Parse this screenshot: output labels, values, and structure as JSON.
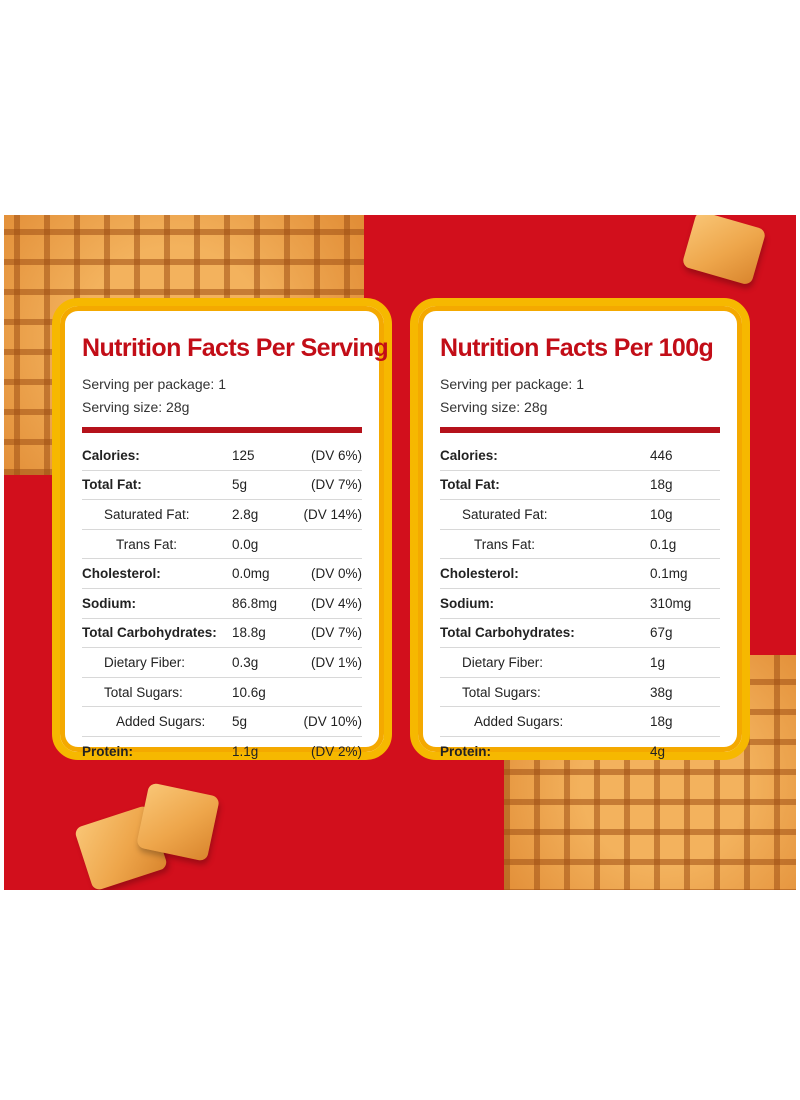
{
  "colors": {
    "background_red": "#d20f1c",
    "title_red": "#c20d17",
    "card_border": "#f6b800"
  },
  "left_panel": {
    "title": "Nutrition Facts Per Serving",
    "servings_per_package": "Serving per package: 1",
    "serving_size": "Serving size: 28g",
    "rows": [
      {
        "name": "Calories:",
        "value": "125",
        "dv": "(DV 6%)"
      },
      {
        "name": "Total Fat:",
        "value": "5g",
        "dv": "(DV 7%)"
      },
      {
        "name": "Saturated Fat:",
        "value": "2.8g",
        "dv": "(DV 14%)"
      },
      {
        "name": "Trans Fat:",
        "value": "0.0g",
        "dv": ""
      },
      {
        "name": "Cholesterol:",
        "value": "0.0mg",
        "dv": "(DV 0%)"
      },
      {
        "name": "Sodium:",
        "value": "86.8mg",
        "dv": "(DV 4%)"
      },
      {
        "name": "Total Carbohydrates:",
        "value": "18.8g",
        "dv": "(DV 7%)"
      },
      {
        "name": "Dietary Fiber:",
        "value": "0.3g",
        "dv": "(DV 1%)"
      },
      {
        "name": "Total Sugars:",
        "value": "10.6g",
        "dv": ""
      },
      {
        "name": "Added Sugars:",
        "value": "5g",
        "dv": "(DV 10%)"
      },
      {
        "name": "Protein:",
        "value": "1.1g",
        "dv": "(DV 2%)"
      }
    ]
  },
  "right_panel": {
    "title": "Nutrition Facts Per 100g",
    "servings_per_package": "Serving per package: 1",
    "serving_size": "Serving size: 28g",
    "rows": [
      {
        "name": "Calories:",
        "value": "446"
      },
      {
        "name": "Total Fat:",
        "value": "18g"
      },
      {
        "name": "Saturated Fat:",
        "value": "10g"
      },
      {
        "name": "Trans Fat:",
        "value": "0.1g"
      },
      {
        "name": "Cholesterol:",
        "value": "0.1mg"
      },
      {
        "name": "Sodium:",
        "value": "310mg"
      },
      {
        "name": "Total Carbohydrates:",
        "value": "67g"
      },
      {
        "name": "Dietary Fiber:",
        "value": "1g"
      },
      {
        "name": "Total Sugars:",
        "value": "38g"
      },
      {
        "name": "Added Sugars:",
        "value": "18g"
      },
      {
        "name": "Protein:",
        "value": "4g"
      }
    ]
  }
}
